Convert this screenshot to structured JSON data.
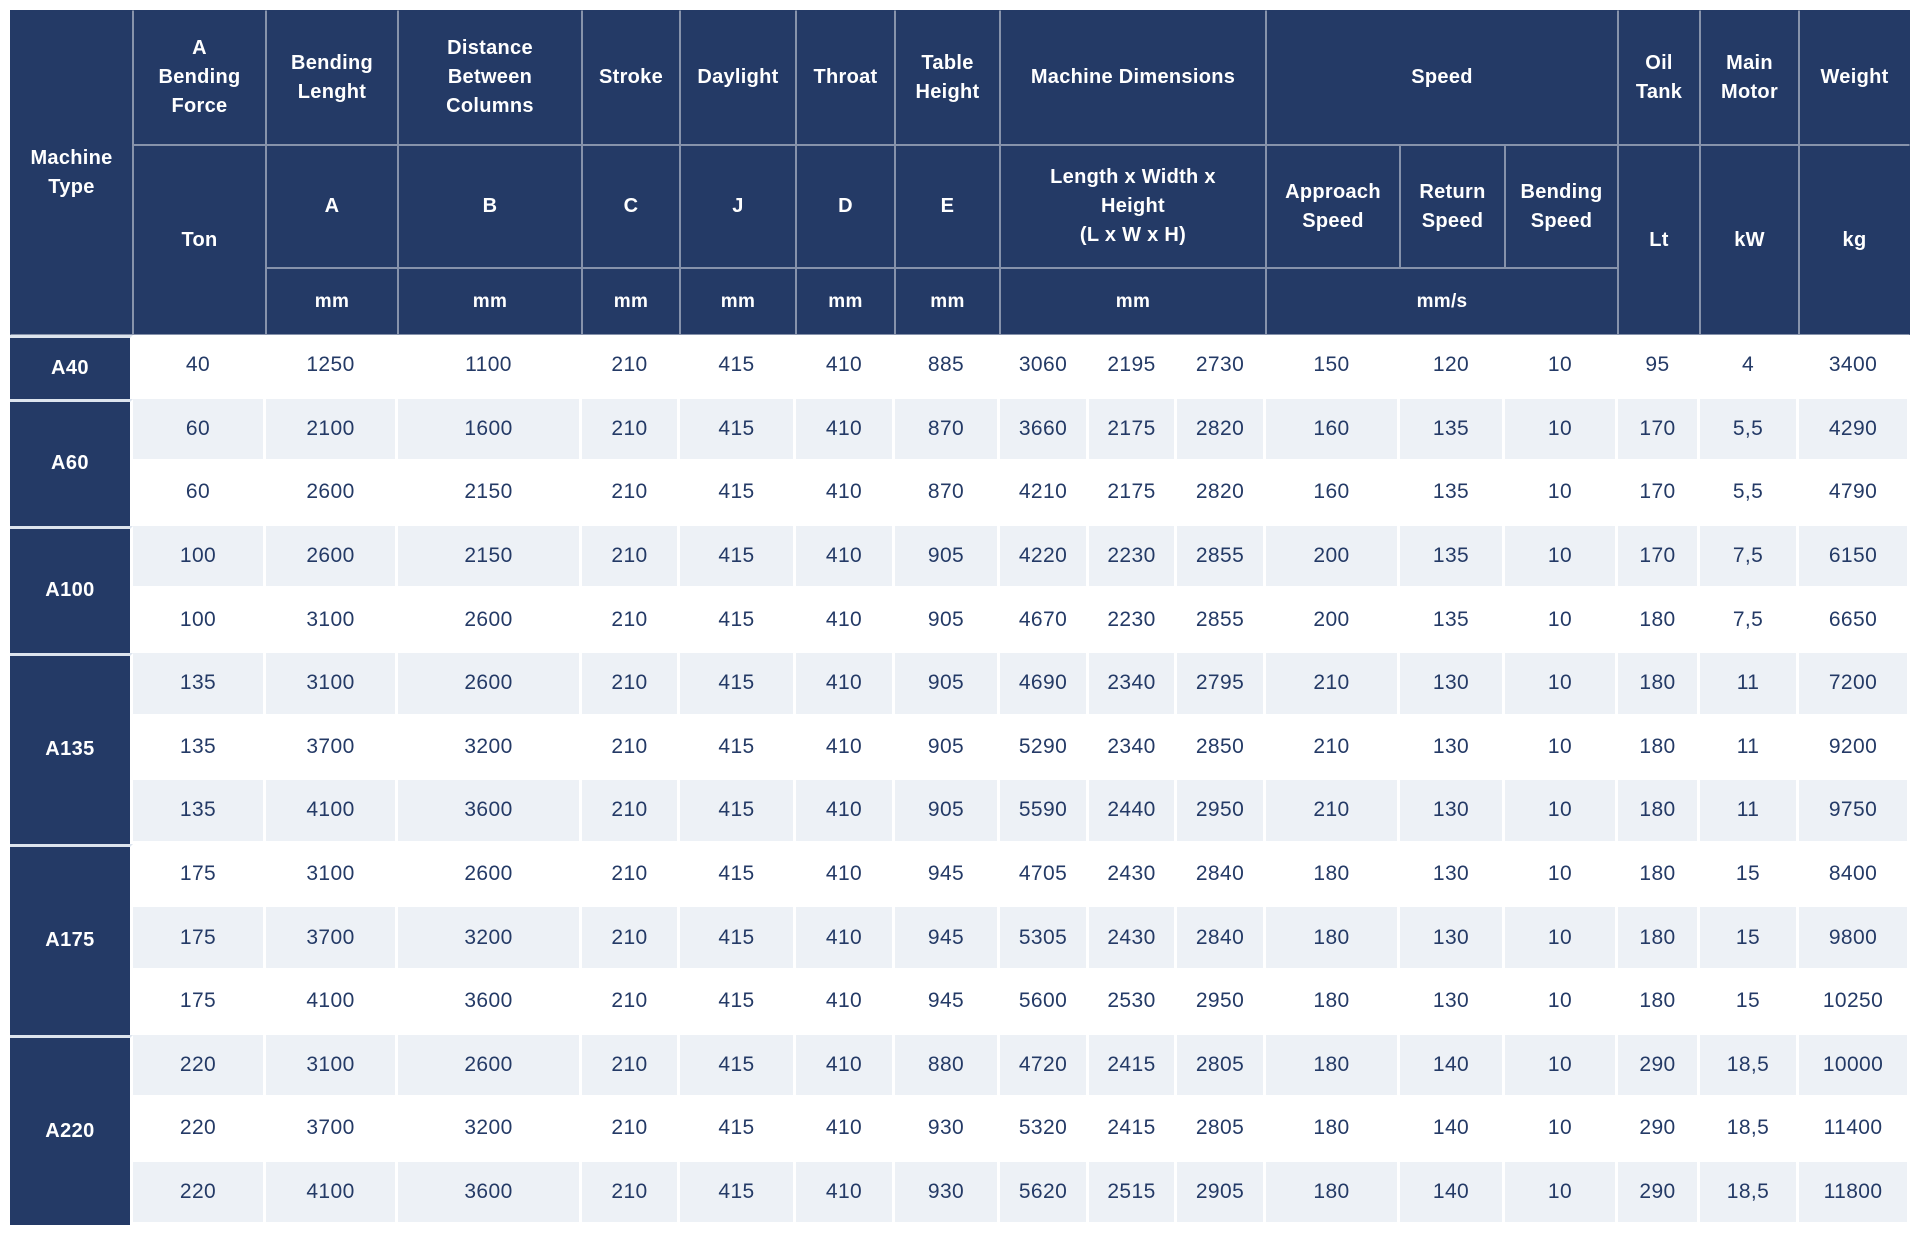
{
  "colors": {
    "header_bg": "#243a66",
    "header_text": "#ffffff",
    "row_bg": "#ffffff",
    "row_alt_bg": "#edf1f6",
    "data_text": "#243a66",
    "grid_line": "rgba(255,255,255,0.45)"
  },
  "table": {
    "header": {
      "machine_type": "Machine\nType",
      "bending_force": {
        "title": "A\nBending\nForce",
        "sub": "Ton"
      },
      "bending_length": {
        "title": "Bending\nLenght",
        "sub": "A",
        "unit": "mm"
      },
      "distance_between_columns": {
        "title": "Distance\nBetween\nColumns",
        "sub": "B",
        "unit": "mm"
      },
      "stroke": {
        "title": "Stroke",
        "sub": "C",
        "unit": "mm"
      },
      "daylight": {
        "title": "Daylight",
        "sub": "J",
        "unit": "mm"
      },
      "throat": {
        "title": "Throat",
        "sub": "D",
        "unit": "mm"
      },
      "table_height": {
        "title": "Table\nHeight",
        "sub": "E",
        "unit": "mm"
      },
      "machine_dimensions": {
        "title": "Machine Dimensions",
        "sub": "Length x Width x\nHeight\n(L x W x H)",
        "unit": "mm"
      },
      "speed": {
        "title": "Speed",
        "sub_approach": "Approach\nSpeed",
        "sub_return": "Return\nSpeed",
        "sub_bending": "Bending\nSpeed",
        "unit": "mm/s"
      },
      "oil_tank": {
        "title": "Oil\nTank",
        "sub": "Lt"
      },
      "main_motor": {
        "title": "Main\nMotor",
        "sub": "kW"
      },
      "weight": {
        "title": "Weight",
        "sub": "kg"
      }
    },
    "column_keys": [
      "ton",
      "bending-length-a",
      "distance-b",
      "stroke-c",
      "daylight-j",
      "throat-d",
      "table-height-e",
      "dim-length",
      "dim-width",
      "dim-height",
      "approach-speed",
      "return-speed",
      "bending-speed",
      "oil-tank-lt",
      "main-motor-kw",
      "weight-kg"
    ],
    "groups": [
      {
        "type": "A40",
        "rows": [
          [
            "40",
            "1250",
            "1100",
            "210",
            "415",
            "410",
            "885",
            "3060",
            "2195",
            "2730",
            "150",
            "120",
            "10",
            "95",
            "4",
            "3400"
          ]
        ]
      },
      {
        "type": "A60",
        "rows": [
          [
            "60",
            "2100",
            "1600",
            "210",
            "415",
            "410",
            "870",
            "3660",
            "2175",
            "2820",
            "160",
            "135",
            "10",
            "170",
            "5,5",
            "4290"
          ],
          [
            "60",
            "2600",
            "2150",
            "210",
            "415",
            "410",
            "870",
            "4210",
            "2175",
            "2820",
            "160",
            "135",
            "10",
            "170",
            "5,5",
            "4790"
          ]
        ]
      },
      {
        "type": "A100",
        "rows": [
          [
            "100",
            "2600",
            "2150",
            "210",
            "415",
            "410",
            "905",
            "4220",
            "2230",
            "2855",
            "200",
            "135",
            "10",
            "170",
            "7,5",
            "6150"
          ],
          [
            "100",
            "3100",
            "2600",
            "210",
            "415",
            "410",
            "905",
            "4670",
            "2230",
            "2855",
            "200",
            "135",
            "10",
            "180",
            "7,5",
            "6650"
          ]
        ]
      },
      {
        "type": "A135",
        "rows": [
          [
            "135",
            "3100",
            "2600",
            "210",
            "415",
            "410",
            "905",
            "4690",
            "2340",
            "2795",
            "210",
            "130",
            "10",
            "180",
            "11",
            "7200"
          ],
          [
            "135",
            "3700",
            "3200",
            "210",
            "415",
            "410",
            "905",
            "5290",
            "2340",
            "2850",
            "210",
            "130",
            "10",
            "180",
            "11",
            "9200"
          ],
          [
            "135",
            "4100",
            "3600",
            "210",
            "415",
            "410",
            "905",
            "5590",
            "2440",
            "2950",
            "210",
            "130",
            "10",
            "180",
            "11",
            "9750"
          ]
        ]
      },
      {
        "type": "A175",
        "rows": [
          [
            "175",
            "3100",
            "2600",
            "210",
            "415",
            "410",
            "945",
            "4705",
            "2430",
            "2840",
            "180",
            "130",
            "10",
            "180",
            "15",
            "8400"
          ],
          [
            "175",
            "3700",
            "3200",
            "210",
            "415",
            "410",
            "945",
            "5305",
            "2430",
            "2840",
            "180",
            "130",
            "10",
            "180",
            "15",
            "9800"
          ],
          [
            "175",
            "4100",
            "3600",
            "210",
            "415",
            "410",
            "945",
            "5600",
            "2530",
            "2950",
            "180",
            "130",
            "10",
            "180",
            "15",
            "10250"
          ]
        ]
      },
      {
        "type": "A220",
        "rows": [
          [
            "220",
            "3100",
            "2600",
            "210",
            "415",
            "410",
            "880",
            "4720",
            "2415",
            "2805",
            "180",
            "140",
            "10",
            "290",
            "18,5",
            "10000"
          ],
          [
            "220",
            "3700",
            "3200",
            "210",
            "415",
            "410",
            "930",
            "5320",
            "2415",
            "2805",
            "180",
            "140",
            "10",
            "290",
            "18,5",
            "11400"
          ],
          [
            "220",
            "4100",
            "3600",
            "210",
            "415",
            "410",
            "930",
            "5620",
            "2515",
            "2905",
            "180",
            "140",
            "10",
            "290",
            "18,5",
            "11800"
          ]
        ]
      }
    ]
  }
}
